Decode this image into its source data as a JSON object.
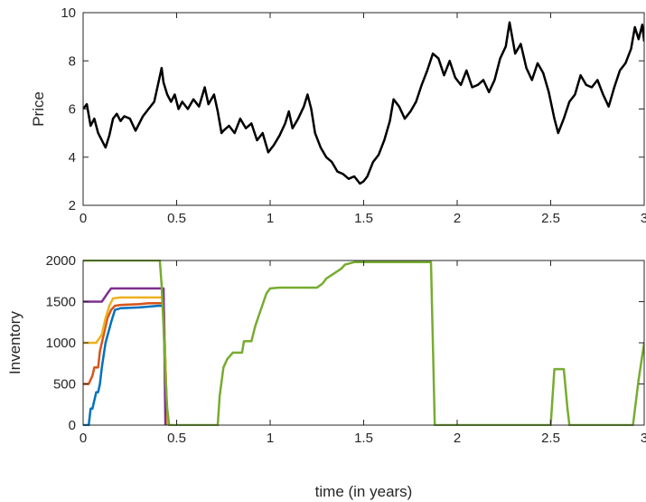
{
  "chart_data": [
    {
      "type": "line",
      "title": "",
      "xlabel": "",
      "ylabel": "Price",
      "xlim": [
        0,
        3
      ],
      "ylim": [
        2,
        10
      ],
      "xticks": [
        "0",
        "0.5",
        "1",
        "1.5",
        "2",
        "2.5",
        "3"
      ],
      "yticks": [
        "2",
        "4",
        "6",
        "8",
        "10"
      ],
      "grid": false,
      "series": [
        {
          "color": "#000000",
          "x": [
            0,
            0.02,
            0.04,
            0.06,
            0.08,
            0.1,
            0.12,
            0.14,
            0.16,
            0.18,
            0.2,
            0.22,
            0.25,
            0.28,
            0.3,
            0.32,
            0.35,
            0.38,
            0.4,
            0.42,
            0.43,
            0.45,
            0.47,
            0.49,
            0.51,
            0.53,
            0.56,
            0.59,
            0.62,
            0.65,
            0.67,
            0.7,
            0.72,
            0.74,
            0.75,
            0.78,
            0.81,
            0.84,
            0.87,
            0.9,
            0.93,
            0.96,
            0.99,
            1.02,
            1.05,
            1.08,
            1.1,
            1.12,
            1.15,
            1.18,
            1.2,
            1.22,
            1.24,
            1.27,
            1.3,
            1.33,
            1.36,
            1.39,
            1.42,
            1.45,
            1.48,
            1.5,
            1.52,
            1.55,
            1.58,
            1.61,
            1.64,
            1.66,
            1.69,
            1.72,
            1.75,
            1.78,
            1.81,
            1.84,
            1.87,
            1.9,
            1.93,
            1.96,
            1.99,
            2.02,
            2.05,
            2.08,
            2.11,
            2.14,
            2.17,
            2.2,
            2.23,
            2.26,
            2.28,
            2.31,
            2.34,
            2.37,
            2.4,
            2.43,
            2.46,
            2.49,
            2.52,
            2.54,
            2.57,
            2.6,
            2.63,
            2.66,
            2.69,
            2.72,
            2.75,
            2.78,
            2.81,
            2.84,
            2.87,
            2.9,
            2.93,
            2.95,
            2.97,
            2.99,
            3.0
          ],
          "y": [
            6.0,
            6.2,
            5.3,
            5.6,
            5.0,
            4.7,
            4.4,
            4.9,
            5.6,
            5.8,
            5.5,
            5.7,
            5.6,
            5.1,
            5.4,
            5.7,
            6.0,
            6.3,
            7.0,
            7.7,
            7.1,
            6.6,
            6.3,
            6.6,
            6.0,
            6.3,
            6.0,
            6.4,
            6.1,
            6.9,
            6.2,
            6.6,
            5.9,
            5.0,
            5.1,
            5.3,
            5.0,
            5.6,
            5.2,
            5.4,
            4.7,
            5.0,
            4.2,
            4.5,
            4.9,
            5.4,
            5.9,
            5.2,
            5.6,
            6.1,
            6.6,
            6.0,
            5.0,
            4.4,
            4.0,
            3.8,
            3.4,
            3.3,
            3.1,
            3.2,
            2.9,
            3.0,
            3.2,
            3.8,
            4.1,
            4.7,
            5.5,
            6.4,
            6.1,
            5.6,
            5.9,
            6.3,
            7.0,
            7.6,
            8.3,
            8.1,
            7.4,
            8.0,
            7.3,
            7.0,
            7.6,
            6.9,
            7.0,
            7.2,
            6.7,
            7.2,
            8.1,
            8.6,
            9.6,
            8.3,
            8.7,
            7.7,
            7.2,
            7.9,
            7.5,
            6.7,
            5.6,
            5.0,
            5.6,
            6.3,
            6.6,
            7.4,
            7.0,
            6.9,
            7.2,
            6.6,
            6.1,
            6.9,
            7.6,
            7.9,
            8.5,
            9.4,
            8.9,
            9.5,
            8.8
          ]
        }
      ]
    },
    {
      "type": "line",
      "title": "",
      "xlabel": "time (in years)",
      "ylabel": "Inventory",
      "xlim": [
        0,
        3
      ],
      "ylim": [
        0,
        2000
      ],
      "xticks": [
        "0",
        "0.5",
        "1",
        "1.5",
        "2",
        "2.5",
        "3"
      ],
      "yticks": [
        "0",
        "500",
        "1000",
        "1500",
        "2000"
      ],
      "grid": false,
      "series": [
        {
          "color": "#0072BD",
          "x": [
            0,
            0.03,
            0.04,
            0.05,
            0.06,
            0.07,
            0.08,
            0.09,
            0.1,
            0.12,
            0.15,
            0.17,
            0.2,
            0.3,
            0.35,
            0.4,
            0.43,
            0.45
          ],
          "y": [
            0,
            0,
            200,
            200,
            300,
            400,
            400,
            500,
            700,
            1000,
            1250,
            1400,
            1420,
            1430,
            1440,
            1450,
            1450,
            0
          ]
        },
        {
          "color": "#D95319",
          "x": [
            0,
            0.03,
            0.05,
            0.06,
            0.08,
            0.09,
            0.11,
            0.13,
            0.15,
            0.17,
            0.2,
            0.3,
            0.35,
            0.4,
            0.43,
            0.45
          ],
          "y": [
            500,
            500,
            600,
            700,
            700,
            900,
            1100,
            1300,
            1400,
            1450,
            1460,
            1470,
            1480,
            1480,
            1480,
            0
          ]
        },
        {
          "color": "#EDB120",
          "x": [
            0,
            0.05,
            0.07,
            0.1,
            0.12,
            0.14,
            0.16,
            0.2,
            0.25,
            0.3,
            0.35,
            0.43,
            0.45
          ],
          "y": [
            1000,
            1000,
            1000,
            1100,
            1300,
            1450,
            1540,
            1550,
            1550,
            1550,
            1550,
            1550,
            0
          ]
        },
        {
          "color": "#7E2F8E",
          "x": [
            0,
            0.1,
            0.13,
            0.15,
            0.2,
            0.3,
            0.43,
            0.44
          ],
          "y": [
            1500,
            1500,
            1600,
            1660,
            1660,
            1660,
            1660,
            0
          ]
        },
        {
          "color": "#77AC30",
          "x": [
            0,
            0.41,
            0.42,
            0.43,
            0.44,
            0.45,
            0.46,
            0.5,
            0.6,
            0.7,
            0.72,
            0.73,
            0.75,
            0.77,
            0.8,
            0.85,
            0.86,
            0.9,
            0.92,
            0.95,
            0.98,
            1.0,
            1.05,
            1.1,
            1.2,
            1.25,
            1.28,
            1.3,
            1.32,
            1.38,
            1.4,
            1.45,
            1.5,
            1.6,
            1.7,
            1.8,
            1.86,
            1.87,
            1.88,
            1.9,
            2.0,
            2.2,
            2.4,
            2.48,
            2.5,
            2.52,
            2.56,
            2.57,
            2.59,
            2.6,
            2.7,
            2.85,
            2.92,
            2.94,
            2.97,
            3.0
          ],
          "y": [
            2000,
            2000,
            1700,
            1200,
            600,
            200,
            0,
            0,
            0,
            0,
            0,
            350,
            700,
            800,
            880,
            880,
            1020,
            1020,
            1200,
            1400,
            1600,
            1660,
            1670,
            1670,
            1670,
            1670,
            1720,
            1780,
            1810,
            1900,
            1950,
            1980,
            1980,
            1980,
            1980,
            1980,
            1980,
            1000,
            0,
            0,
            0,
            0,
            0,
            0,
            0,
            680,
            680,
            680,
            200,
            0,
            0,
            0,
            0,
            0,
            550,
            1000
          ]
        }
      ]
    }
  ]
}
